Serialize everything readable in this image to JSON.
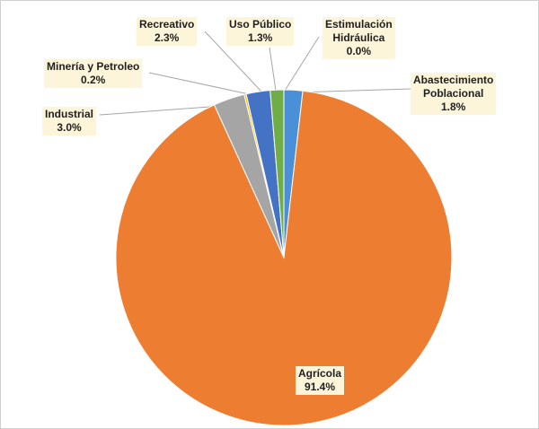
{
  "chart_data": {
    "type": "pie",
    "start_angle_deg": 0,
    "direction": "clockwise",
    "slices": [
      {
        "label": "Abastecimiento Poblacional",
        "value_text": "1.8%",
        "value": 1.8,
        "color": "#4a90d9"
      },
      {
        "label": "Agrícola",
        "value_text": "91.4%",
        "value": 91.4,
        "color": "#ed7d31"
      },
      {
        "label": "Industrial",
        "value_text": "3.0%",
        "value": 3.0,
        "color": "#a5a5a5"
      },
      {
        "label": "Minería y Petroleo",
        "value_text": "0.2%",
        "value": 0.2,
        "color": "#ffc000"
      },
      {
        "label": "Recreativo",
        "value_text": "2.3%",
        "value": 2.3,
        "color": "#4472c4"
      },
      {
        "label": "Uso Público",
        "value_text": "1.3%",
        "value": 1.3,
        "color": "#70ad47"
      },
      {
        "label": "Estimulación Hidráulica",
        "value_text": "0.0%",
        "value": 0.0,
        "color": "#264478"
      }
    ]
  },
  "labels": {
    "recreativo": {
      "name": "Recreativo",
      "value": "2.3%"
    },
    "uso_publico": {
      "name": "Uso Público",
      "value": "1.3%"
    },
    "estimulacion": {
      "name1": "Estimulación",
      "name2": "Hidráulica",
      "value": "0.0%"
    },
    "mineria": {
      "name": "Minería y Petroleo",
      "value": "0.2%"
    },
    "abastecimiento": {
      "name1": "Abastecimiento",
      "name2": "Poblacional",
      "value": "1.8%"
    },
    "industrial": {
      "name": "Industrial",
      "value": "3.0%"
    },
    "agricola": {
      "name": "Agrícola",
      "value": "91.4%"
    }
  }
}
